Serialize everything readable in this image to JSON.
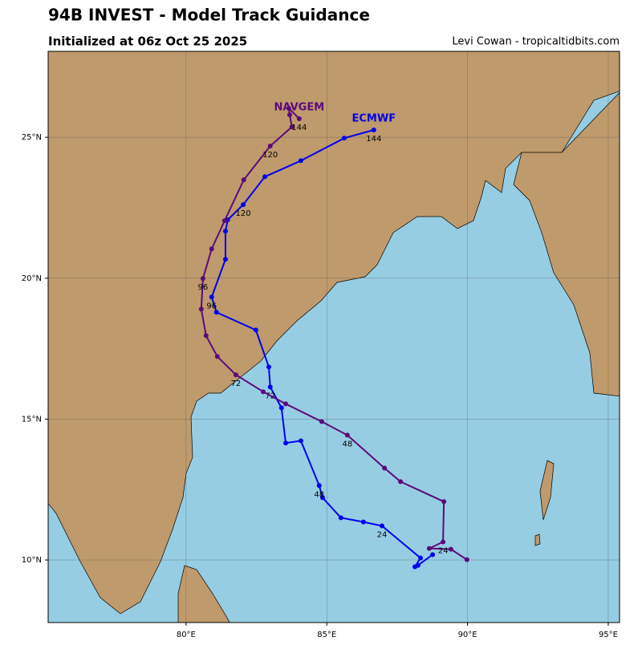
{
  "chart_data": {
    "type": "track",
    "title": "94B INVEST - Model Track Guidance",
    "subtitle": "Initialized at 06z Oct 25 2025",
    "credit": "Levi Cowan - tropicaltidbits.com",
    "xlim": [
      75.1,
      95.4
    ],
    "ylim": [
      7.78,
      28.05
    ],
    "xticks": [
      {
        "value": 80,
        "label": "80°E"
      },
      {
        "value": 85,
        "label": "85°E"
      },
      {
        "value": 90,
        "label": "90°E"
      },
      {
        "value": 95,
        "label": "95°E"
      }
    ],
    "yticks": [
      {
        "value": 10,
        "label": "10°N"
      },
      {
        "value": 15,
        "label": "15°N"
      },
      {
        "value": 20,
        "label": "20°N"
      },
      {
        "value": 25,
        "label": "25°N"
      }
    ],
    "grid": true,
    "series": [
      {
        "name": "ECMWF",
        "color": "#0000ee",
        "x": [
          88.76,
          88.24,
          88.13,
          88.33,
          86.96,
          86.3,
          85.5,
          84.85,
          84.73,
          84.08,
          83.54,
          83.39,
          82.99,
          82.94,
          82.48,
          81.08,
          80.91,
          81.4,
          81.4,
          81.48,
          82.03,
          82.8,
          84.08,
          85.62,
          86.67
        ],
        "y": [
          10.19,
          9.81,
          9.76,
          10.07,
          11.21,
          11.35,
          11.5,
          12.21,
          12.64,
          14.23,
          14.15,
          15.4,
          16.14,
          16.85,
          18.16,
          18.79,
          19.33,
          20.67,
          21.67,
          22.07,
          22.61,
          23.6,
          24.17,
          24.97,
          25.26
        ],
        "labels": [
          null,
          null,
          null,
          null,
          "24",
          null,
          null,
          null,
          "48",
          null,
          null,
          null,
          "72",
          null,
          null,
          null,
          "96",
          null,
          null,
          null,
          "120",
          null,
          null,
          null,
          "144"
        ]
      },
      {
        "name": "NAVGEM",
        "color": "#5c0a7a",
        "x": [
          89.98,
          89.41,
          88.64,
          89.13,
          89.16,
          87.62,
          87.05,
          85.73,
          84.82,
          83.54,
          82.74,
          81.77,
          81.11,
          80.71,
          80.54,
          80.6,
          80.91,
          81.37,
          82.05,
          82.99,
          83.76,
          83.68,
          83.65,
          84.02
        ],
        "y": [
          10.01,
          10.38,
          10.41,
          10.64,
          12.07,
          12.78,
          13.26,
          14.43,
          14.91,
          15.54,
          15.97,
          16.57,
          17.22,
          17.96,
          18.9,
          19.99,
          21.04,
          22.04,
          23.49,
          24.69,
          25.37,
          25.8,
          26.03,
          25.66
        ],
        "labels": [
          null,
          null,
          null,
          "24",
          null,
          null,
          null,
          "48",
          null,
          null,
          null,
          "72",
          null,
          null,
          null,
          "96",
          null,
          null,
          null,
          "120",
          null,
          null,
          null,
          "144"
        ]
      }
    ]
  }
}
